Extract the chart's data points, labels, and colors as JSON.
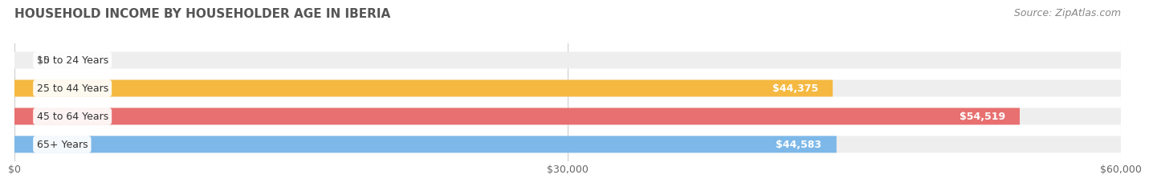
{
  "title": "HOUSEHOLD INCOME BY HOUSEHOLDER AGE IN IBERIA",
  "source": "Source: ZipAtlas.com",
  "categories": [
    "15 to 24 Years",
    "25 to 44 Years",
    "45 to 64 Years",
    "65+ Years"
  ],
  "values": [
    0,
    44375,
    54519,
    44583
  ],
  "bar_colors": [
    "#f4a0b5",
    "#f5b942",
    "#e87070",
    "#7db8e8"
  ],
  "bar_bg_color": "#eeeeee",
  "max_value": 60000,
  "x_ticks": [
    0,
    30000,
    60000
  ],
  "x_tick_labels": [
    "$0",
    "$30,000",
    "$60,000"
  ],
  "value_labels": [
    "$0",
    "$44,375",
    "$54,519",
    "$44,583"
  ],
  "background_color": "#ffffff",
  "title_color": "#555555",
  "title_fontsize": 11,
  "label_fontsize": 9,
  "source_fontsize": 9,
  "source_color": "#888888"
}
